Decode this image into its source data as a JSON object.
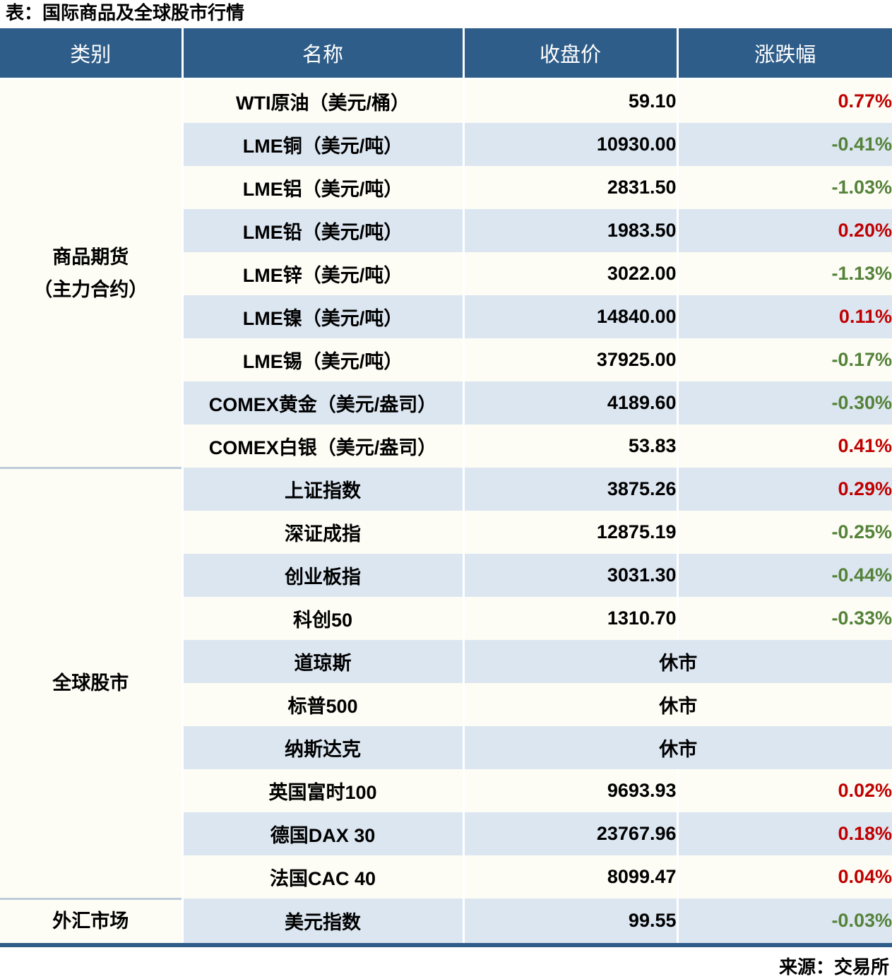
{
  "title": "表：国际商品及全球股市行情",
  "source": "来源：交易所",
  "colors": {
    "header_blue": "#2F5D89",
    "row_blue": "#DCE6F1",
    "row_cream": "#FDFDF5",
    "divider": "#BCCCDA",
    "up_color": "#C00000",
    "down_color": "#548239"
  },
  "chart_data": {
    "type": "table",
    "title": "表：国际商品及全球股市行情",
    "columns": [
      "类别",
      "名称",
      "收盘价",
      "涨跌幅"
    ],
    "sections": [
      {
        "category": "商品期货（主力合约）",
        "category_lines": "商品期货\n（主力合约）",
        "rows": [
          {
            "name": "WTI原油（美元/桶）",
            "close": "59.10",
            "change": "0.77%",
            "dir": "up"
          },
          {
            "name": "LME铜（美元/吨）",
            "close": "10930.00",
            "change": "-0.41%",
            "dir": "down"
          },
          {
            "name": "LME铝（美元/吨）",
            "close": "2831.50",
            "change": "-1.03%",
            "dir": "down"
          },
          {
            "name": "LME铅（美元/吨）",
            "close": "1983.50",
            "change": "0.20%",
            "dir": "up"
          },
          {
            "name": "LME锌（美元/吨）",
            "close": "3022.00",
            "change": "-1.13%",
            "dir": "down"
          },
          {
            "name": "LME镍（美元/吨）",
            "close": "14840.00",
            "change": "0.11%",
            "dir": "up"
          },
          {
            "name": "LME锡（美元/吨）",
            "close": "37925.00",
            "change": "-0.17%",
            "dir": "down"
          },
          {
            "name": "COMEX黄金（美元/盎司）",
            "close": "4189.60",
            "change": "-0.30%",
            "dir": "down"
          },
          {
            "name": "COMEX白银（美元/盎司）",
            "close": "53.83",
            "change": "0.41%",
            "dir": "up"
          }
        ]
      },
      {
        "category": "全球股市",
        "category_lines": "全球股市",
        "rows": [
          {
            "name": "上证指数",
            "close": "3875.26",
            "change": "0.29%",
            "dir": "up"
          },
          {
            "name": "深证成指",
            "close": "12875.19",
            "change": "-0.25%",
            "dir": "down"
          },
          {
            "name": "创业板指",
            "close": "3031.30",
            "change": "-0.44%",
            "dir": "down"
          },
          {
            "name": "科创50",
            "close": "1310.70",
            "change": "-0.33%",
            "dir": "down"
          },
          {
            "name": "道琼斯",
            "close": "休市",
            "change": null,
            "dir": "closed"
          },
          {
            "name": "标普500",
            "close": "休市",
            "change": null,
            "dir": "closed"
          },
          {
            "name": "纳斯达克",
            "close": "休市",
            "change": null,
            "dir": "closed"
          },
          {
            "name": "英国富时100",
            "close": "9693.93",
            "change": "0.02%",
            "dir": "up"
          },
          {
            "name": "德国DAX 30",
            "close": "23767.96",
            "change": "0.18%",
            "dir": "up"
          },
          {
            "name": "法国CAC 40",
            "close": "8099.47",
            "change": "0.04%",
            "dir": "up"
          }
        ]
      },
      {
        "category": "外汇市场",
        "category_lines": "外汇市场",
        "rows": [
          {
            "name": "美元指数",
            "close": "99.55",
            "change": "-0.03%",
            "dir": "down"
          }
        ]
      }
    ]
  }
}
